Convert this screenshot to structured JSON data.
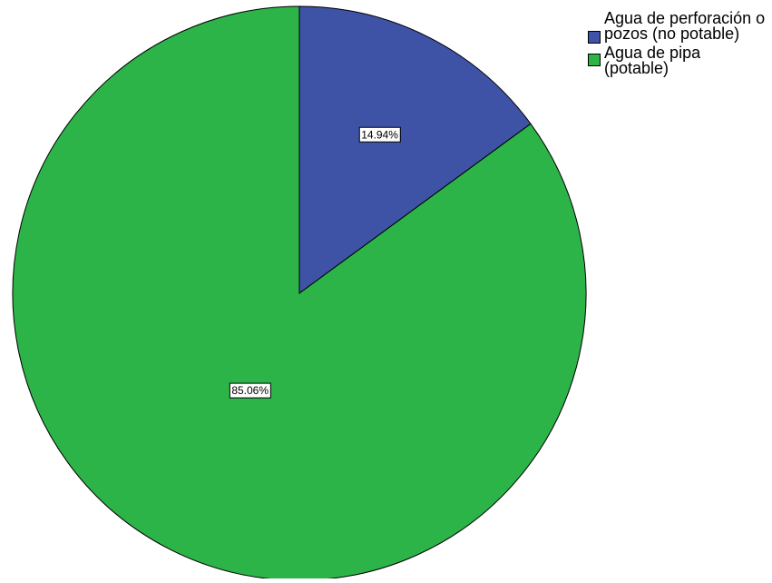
{
  "chart_data": {
    "type": "pie",
    "categories": [
      "Agua de perforación o pozos (no potable)",
      "Agua de pipa (potable)"
    ],
    "values": [
      14.94,
      85.06
    ],
    "data_labels": [
      "14.94%",
      "85.06%"
    ],
    "colors": [
      "#3e53a6",
      "#2db449"
    ],
    "start_angle": "12 o'clock, clockwise",
    "legend_position": "top-right",
    "title": ""
  },
  "legend": {
    "items": [
      {
        "label": "Agua de perforación o pozos (no potable)",
        "color": "#3e53a6"
      },
      {
        "label": "Agua de pipa (potable)",
        "color": "#2db449"
      }
    ]
  }
}
